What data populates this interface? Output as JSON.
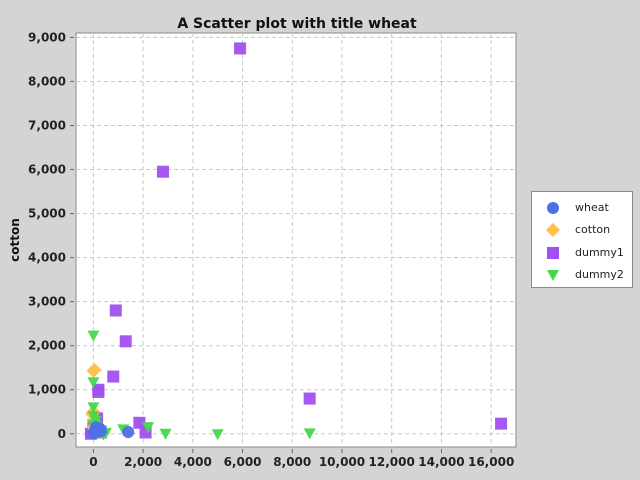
{
  "chart_data": {
    "type": "scatter",
    "title": "A Scatter plot with title wheat",
    "xlabel": "",
    "ylabel": "cotton",
    "xlim": [
      -700,
      17000
    ],
    "ylim": [
      -300,
      9100
    ],
    "xticks": [
      0,
      2000,
      4000,
      6000,
      8000,
      10000,
      12000,
      14000,
      16000
    ],
    "xtick_labels": [
      "0",
      "2,000",
      "4,000",
      "6,000",
      "8,000",
      "10,000",
      "12,000",
      "14,000",
      "16,000"
    ],
    "yticks": [
      0,
      1000,
      2000,
      3000,
      4000,
      5000,
      6000,
      7000,
      8000,
      9000
    ],
    "ytick_labels": [
      "0",
      "1,000",
      "2,000",
      "3,000",
      "4,000",
      "5,000",
      "6,000",
      "7,000",
      "8,000",
      "9,000"
    ],
    "grid": true,
    "legend_position": "right",
    "series": [
      {
        "name": "wheat",
        "marker": "circle",
        "color": "#4f6fe8",
        "points": [
          [
            1400,
            40
          ],
          [
            150,
            80
          ],
          [
            60,
            30
          ],
          [
            250,
            120
          ],
          [
            0,
            10
          ],
          [
            300,
            60
          ],
          [
            100,
            150
          ]
        ]
      },
      {
        "name": "cotton",
        "marker": "diamond",
        "color": "#ffc04d",
        "points": [
          [
            0,
            1430
          ],
          [
            50,
            1450
          ],
          [
            -50,
            450
          ],
          [
            0,
            300
          ],
          [
            100,
            200
          ],
          [
            300,
            100
          ],
          [
            200,
            50
          ],
          [
            0,
            150
          ],
          [
            400,
            30
          ],
          [
            0,
            500
          ]
        ]
      },
      {
        "name": "dummy1",
        "marker": "square",
        "color": "#a050f0",
        "points": [
          [
            5900,
            8750
          ],
          [
            2800,
            5950
          ],
          [
            900,
            2800
          ],
          [
            1300,
            2100
          ],
          [
            800,
            1300
          ],
          [
            200,
            1000
          ],
          [
            200,
            950
          ],
          [
            8700,
            800
          ],
          [
            16400,
            230
          ],
          [
            1850,
            250
          ],
          [
            2100,
            30
          ],
          [
            150,
            350
          ],
          [
            0,
            200
          ],
          [
            80,
            100
          ],
          [
            0,
            50
          ],
          [
            300,
            30
          ],
          [
            -100,
            0
          ]
        ]
      },
      {
        "name": "dummy2",
        "marker": "triangle-down",
        "color": "#44d84a",
        "points": [
          [
            0,
            2230
          ],
          [
            0,
            1170
          ],
          [
            0,
            600
          ],
          [
            0,
            400
          ],
          [
            100,
            300
          ],
          [
            0,
            200
          ],
          [
            150,
            150
          ],
          [
            300,
            80
          ],
          [
            50,
            50
          ],
          [
            500,
            20
          ],
          [
            200,
            0
          ],
          [
            1200,
            100
          ],
          [
            2200,
            150
          ],
          [
            2900,
            0
          ],
          [
            5000,
            -10
          ],
          [
            8700,
            10
          ],
          [
            0,
            -10
          ],
          [
            400,
            -20
          ],
          [
            100,
            10
          ]
        ]
      }
    ]
  }
}
